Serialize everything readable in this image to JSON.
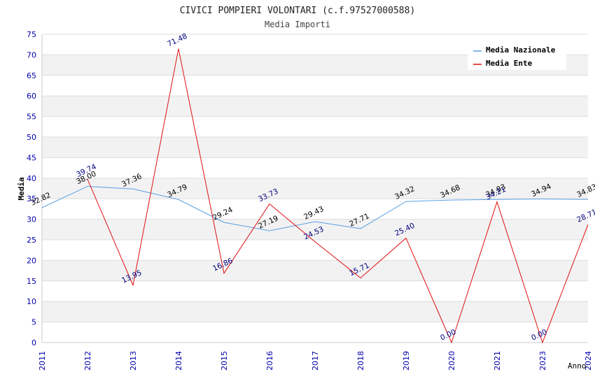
{
  "chart_data": {
    "type": "line",
    "title": "CIVICI POMPIERI VOLONTARI (c.f.97527000588)",
    "subtitle": "Media Importi",
    "ylabel": "Media",
    "xlabel": "Anno",
    "categories": [
      "2011",
      "2012",
      "2013",
      "2014",
      "2015",
      "2016",
      "2017",
      "2018",
      "2019",
      "2020",
      "2021",
      "2023",
      "2024"
    ],
    "ylim": [
      0,
      75
    ],
    "yticks": [
      0,
      5,
      10,
      15,
      20,
      25,
      30,
      35,
      40,
      45,
      50,
      55,
      60,
      65,
      70,
      75
    ],
    "grid": true,
    "legend_position": "top-right",
    "series": [
      {
        "name": "Media Nazionale",
        "color": "#5aa0e6",
        "values": [
          32.82,
          38.0,
          37.36,
          34.79,
          29.24,
          27.19,
          29.43,
          27.71,
          34.32,
          34.68,
          34.83,
          34.94,
          34.83
        ],
        "labels": [
          "32.82",
          "38.00",
          "37.36",
          "34.79",
          "29.24",
          "27.19",
          "29.43",
          "27.71",
          "34.32",
          "34.68",
          "34.83",
          "34.94",
          "34.83"
        ]
      },
      {
        "name": "Media Ente",
        "color": "#e01010",
        "values": [
          null,
          39.74,
          13.95,
          71.48,
          16.86,
          33.73,
          24.53,
          15.71,
          25.4,
          0.0,
          34.21,
          0.0,
          28.71
        ],
        "labels": [
          null,
          "39.74",
          "13.95",
          "71.48",
          "16.86",
          "33.73",
          "24.53",
          "15.71",
          "25.40",
          "0.00",
          "34.21",
          "0.00",
          "28.71"
        ]
      }
    ]
  }
}
